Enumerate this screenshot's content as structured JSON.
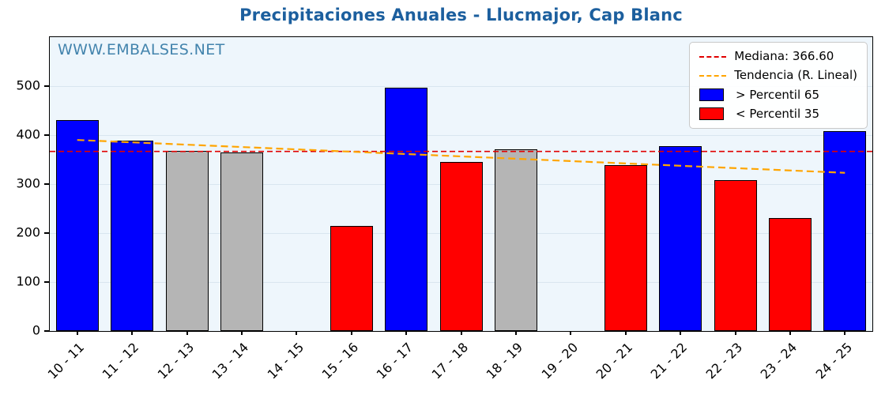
{
  "title": "Precipitaciones Anuales - Llucmajor, Cap Blanc",
  "watermark": "WWW.EMBALSES.NET",
  "colors": {
    "title": "#1c5f9e",
    "watermark": "#4384ad",
    "plot_bg": "#eef6fc",
    "grid": "#d9e6ef",
    "blue": "#0000ff",
    "red": "#ff0000",
    "gray": "#b5b5b5",
    "median": "#e00000",
    "trend": "#ffa500",
    "bar_edge": "#000000"
  },
  "legend": {
    "median_label": "Mediana: 366.60",
    "trend_label": "Tendencia (R. Lineal)",
    "p65_label": " > Percentil 65",
    "p35_label": " < Percentil 35"
  },
  "chart_data": {
    "type": "bar",
    "title": "Precipitaciones Anuales - Llucmajor, Cap Blanc",
    "xlabel": "",
    "ylabel": "",
    "categories": [
      "10 - 11",
      "11 - 12",
      "12 - 13",
      "13 - 14",
      "14 - 15",
      "15 - 16",
      "16 - 17",
      "17 - 18",
      "18 - 19",
      "19 - 20",
      "20 - 21",
      "21 - 22",
      "22 - 23",
      "23 - 24",
      "24 - 25"
    ],
    "values": [
      430,
      389,
      368,
      364,
      0,
      215,
      497,
      345,
      371,
      0,
      338,
      377,
      308,
      230,
      408
    ],
    "bar_colors": [
      "blue",
      "blue",
      "gray",
      "gray",
      null,
      "red",
      "blue",
      "red",
      "gray",
      null,
      "red",
      "blue",
      "red",
      "red",
      "blue"
    ],
    "median": 366.6,
    "trend": {
      "start": 390,
      "end": 323
    },
    "ylim": [
      0,
      600
    ],
    "yticks": [
      0,
      100,
      200,
      300,
      400,
      500
    ],
    "grid": true,
    "legend_position": "upper right"
  }
}
